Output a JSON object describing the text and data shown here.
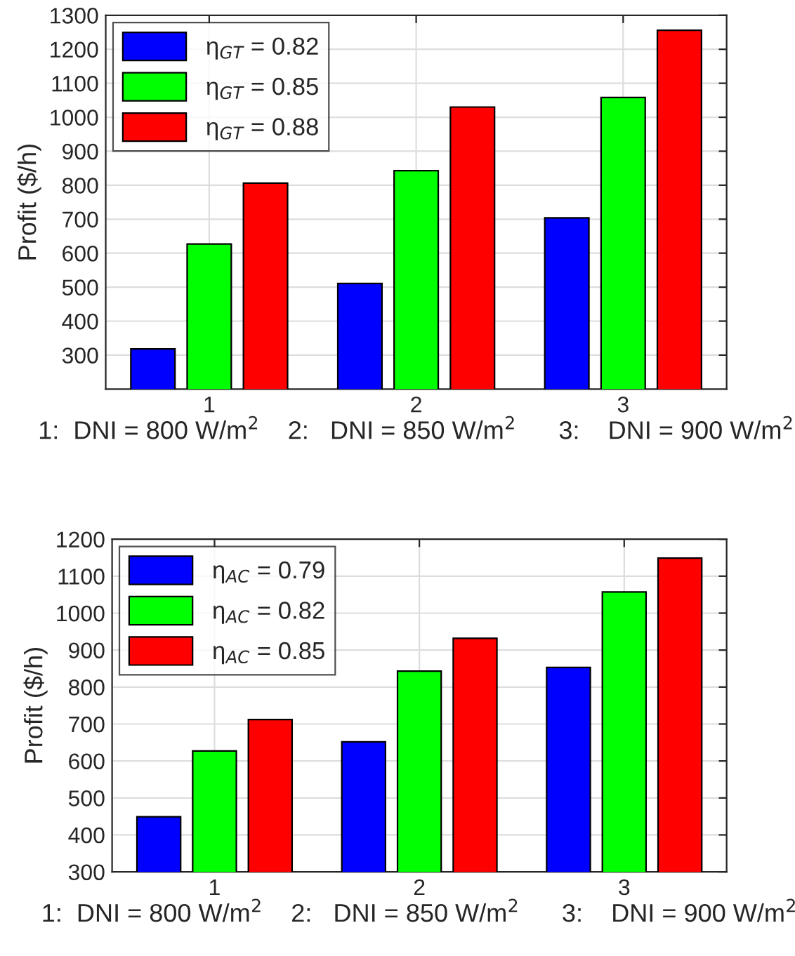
{
  "chart_data": [
    {
      "type": "bar",
      "categories": [
        "1",
        "2",
        "3"
      ],
      "xlabel": "1:  DNI = 800 W/m$^{2}$    2:   DNI = 850 W/m$^{2}$      3:    DNI = 900 W/m$^{2}$",
      "ylabel": "Profit ($/h)",
      "ylim": [
        200,
        1300
      ],
      "yticks": [
        300,
        400,
        500,
        600,
        700,
        800,
        900,
        1000,
        1100,
        1200,
        1300
      ],
      "grid": true,
      "legend": "top left",
      "series": [
        {
          "name": "η$_{GT}$ = 0.82",
          "color": "#0000ff",
          "values": [
            318,
            511,
            704
          ]
        },
        {
          "name": "η$_{GT}$ = 0.85",
          "color": "#00ff00",
          "values": [
            627,
            843,
            1058
          ]
        },
        {
          "name": "η$_{GT}$ = 0.88",
          "color": "#ff0000",
          "values": [
            806,
            1030,
            1256
          ]
        }
      ]
    },
    {
      "type": "bar",
      "categories": [
        "1",
        "2",
        "3"
      ],
      "xlabel": "1:  DNI = 800 W/m$^{2}$    2:   DNI = 850 W/m$^{2}$      3:    DNI = 900 W/m$^{2}$",
      "ylabel": "Profit ($/h)",
      "ylim": [
        300,
        1200
      ],
      "yticks": [
        300,
        400,
        500,
        600,
        700,
        800,
        900,
        1000,
        1100,
        1200
      ],
      "grid": true,
      "legend": "top left",
      "series": [
        {
          "name": "η$_{AC}$ = 0.79",
          "color": "#0000ff",
          "values": [
            449,
            652,
            853
          ]
        },
        {
          "name": "η$_{AC}$ = 0.82",
          "color": "#00ff00",
          "values": [
            627,
            843,
            1057
          ]
        },
        {
          "name": "η$_{AC}$ = 0.85",
          "color": "#ff0000",
          "values": [
            712,
            932,
            1149
          ]
        }
      ]
    }
  ]
}
